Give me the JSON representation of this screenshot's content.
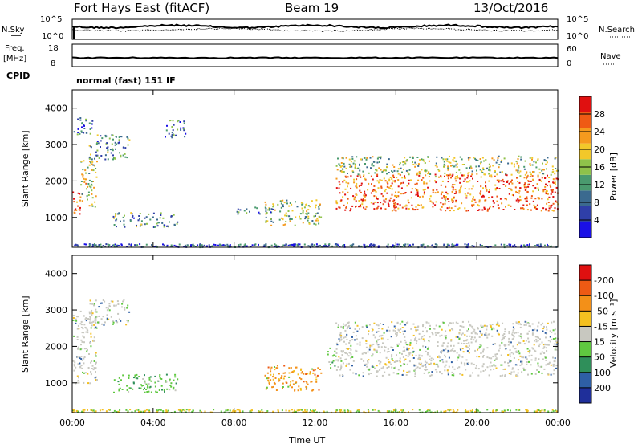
{
  "header": {
    "station": "Fort Hays East (fitACF)",
    "beam": "Beam 19",
    "date": "13/Oct/2016"
  },
  "top_panels": {
    "sky_label": "N.Sky",
    "search_label": "N.Search",
    "noise_ticks_left": [
      "10^5",
      "10^0"
    ],
    "noise_ticks_right": [
      "10^5",
      "10^0"
    ],
    "freq_label": "Freq.",
    "freq_unit": "[MHz]",
    "freq_ticks": [
      "18",
      "8"
    ],
    "nave_label": "Nave",
    "nave_ticks": [
      "60",
      "0"
    ],
    "cpid_label": "CPID",
    "cpid_value": "normal (fast) 151 IF"
  },
  "chart_data": [
    {
      "type": "heatmap",
      "panel": "power",
      "ylabel": "Slant Range [km]",
      "xlabel": "",
      "ylim": [
        180,
        4500
      ],
      "yticks": [
        1000,
        2000,
        3000,
        4000
      ],
      "xticks": [
        "00:00",
        "04:00",
        "08:00",
        "12:00",
        "16:00",
        "20:00",
        "00:00"
      ],
      "colorbar": {
        "label": "Power [dB]",
        "ticks": [
          "4",
          "8",
          "12",
          "16",
          "20",
          "24",
          "28"
        ],
        "colors": [
          "#1a10e6",
          "#2f3fa8",
          "#3b6a8f",
          "#4a9a6e",
          "#8fc24a",
          "#f2c82a",
          "#f59a1e",
          "#ef5a14",
          "#e01010"
        ]
      },
      "regions": [
        {
          "t": [
            0.0,
            0.4
          ],
          "r": [
            1000,
            1800
          ],
          "level": 0.85
        },
        {
          "t": [
            0.4,
            1.2
          ],
          "r": [
            1300,
            2600
          ],
          "level": 0.55
        },
        {
          "t": [
            0.8,
            2.8
          ],
          "r": [
            2600,
            3300
          ],
          "level": 0.35
        },
        {
          "t": [
            0.0,
            1.0
          ],
          "r": [
            3300,
            3800
          ],
          "level": 0.25
        },
        {
          "t": [
            4.5,
            5.6
          ],
          "r": [
            3200,
            3700
          ],
          "level": 0.3
        },
        {
          "t": [
            2.0,
            5.2
          ],
          "r": [
            750,
            1150
          ],
          "level": 0.35
        },
        {
          "t": [
            9.5,
            12.3
          ],
          "r": [
            800,
            1500
          ],
          "level": 0.5
        },
        {
          "t": [
            13.0,
            24.0
          ],
          "r": [
            1200,
            2200
          ],
          "level": 0.8
        },
        {
          "t": [
            13.0,
            24.0
          ],
          "r": [
            2200,
            2700
          ],
          "level": 0.5
        },
        {
          "t": [
            8.0,
            10.0
          ],
          "r": [
            1100,
            1300
          ],
          "level": 0.3
        }
      ],
      "ground_scatter_range": 200
    },
    {
      "type": "heatmap",
      "panel": "velocity",
      "ylabel": "Slant Range [km]",
      "xlabel": "Time UT",
      "ylim": [
        180,
        4500
      ],
      "yticks": [
        1000,
        2000,
        3000,
        4000
      ],
      "xticks": [
        "00:00",
        "04:00",
        "08:00",
        "12:00",
        "16:00",
        "20:00",
        "00:00"
      ],
      "colorbar": {
        "label": "Velocity [m s⁻¹]",
        "ticks": [
          "200",
          "100",
          "50",
          "15",
          "-15",
          "-50",
          "-100",
          "-200"
        ],
        "colors": [
          "#1f2f9a",
          "#2e5fa5",
          "#2f8f5a",
          "#5fc840",
          "#c8c8c0",
          "#f4c020",
          "#f39018",
          "#ee5a14",
          "#e01010"
        ]
      },
      "regions": [
        {
          "t": [
            0.0,
            1.2
          ],
          "r": [
            1000,
            3000
          ],
          "v": "low"
        },
        {
          "t": [
            0.8,
            2.8
          ],
          "r": [
            2600,
            3300
          ],
          "v": "low"
        },
        {
          "t": [
            2.0,
            5.2
          ],
          "r": [
            750,
            1250
          ],
          "v": "pos_med"
        },
        {
          "t": [
            9.5,
            12.3
          ],
          "r": [
            800,
            1500
          ],
          "v": "neg_med"
        },
        {
          "t": [
            13.0,
            24.0
          ],
          "r": [
            1200,
            2700
          ],
          "v": "low"
        },
        {
          "t": [
            12.6,
            13.0
          ],
          "r": [
            1400,
            2000
          ],
          "v": "pos_med"
        }
      ]
    }
  ]
}
